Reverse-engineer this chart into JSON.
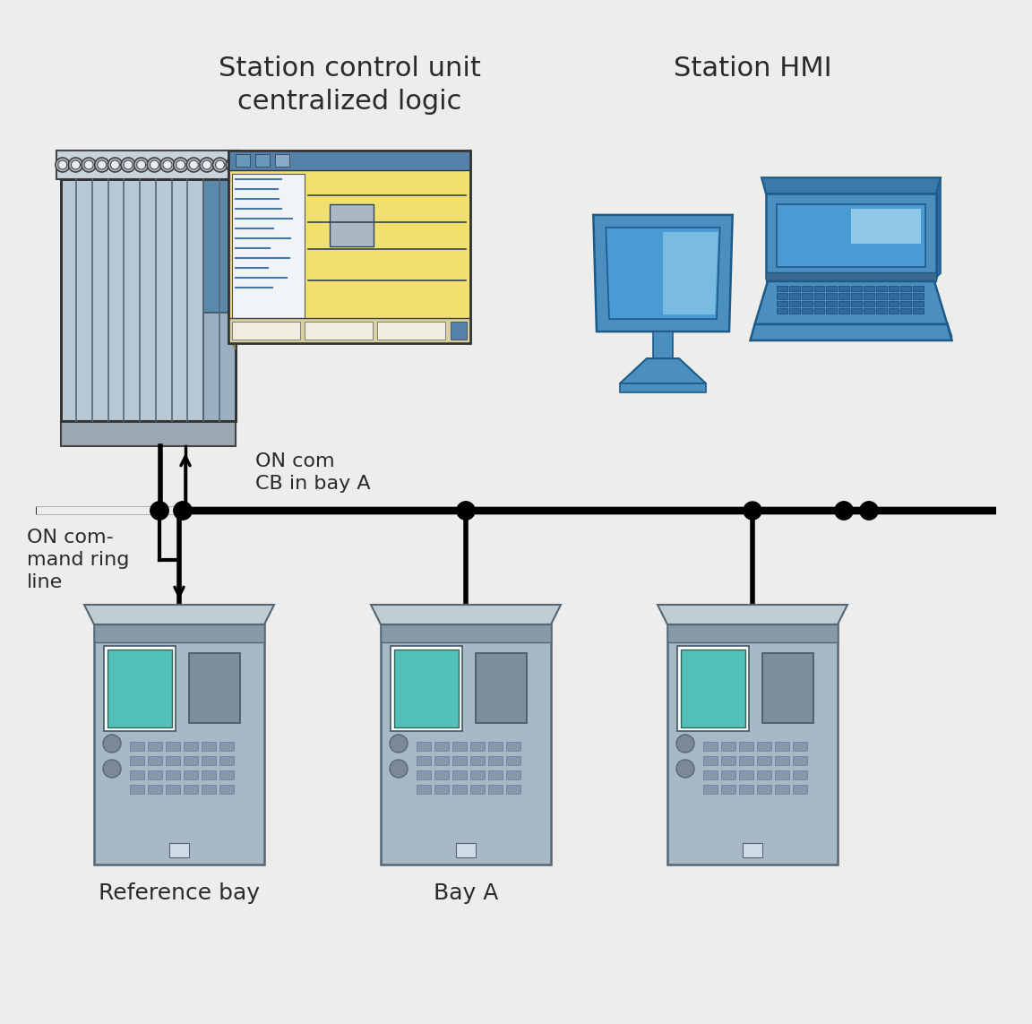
{
  "bg_color": "#ededeb",
  "title_scu": "Station control unit\ncentralized logic",
  "title_hmi": "Station HMI",
  "label_on_com": "ON com\nCB in bay A",
  "label_ring": "ON com-\nmand ring\nline",
  "label_ref_bay": "Reference bay",
  "label_bay_a": "Bay A",
  "text_color": "#2a2a2a",
  "blue_main": "#4a8fc0",
  "blue_dark": "#1e5a88",
  "blue_screen_top": "#4a9ad4",
  "blue_screen_bot": "#c8e8f8",
  "ied_body": "#a8b8c4",
  "ied_dark": "#7a8e9e",
  "ied_teal": "#50c0b8",
  "ied_gray_screen": "#8898a8",
  "scu_body": "#b8c8d4",
  "scu_dark": "#6a7a88",
  "scu_blue_card": "#5a8aaa",
  "popup_yellow": "#f0e070",
  "popup_yellow2": "#e8d860",
  "popup_blue_header": "#5580a8",
  "popup_white_panel": "#f0f4f8",
  "popup_triangle": "#f5ebb0"
}
